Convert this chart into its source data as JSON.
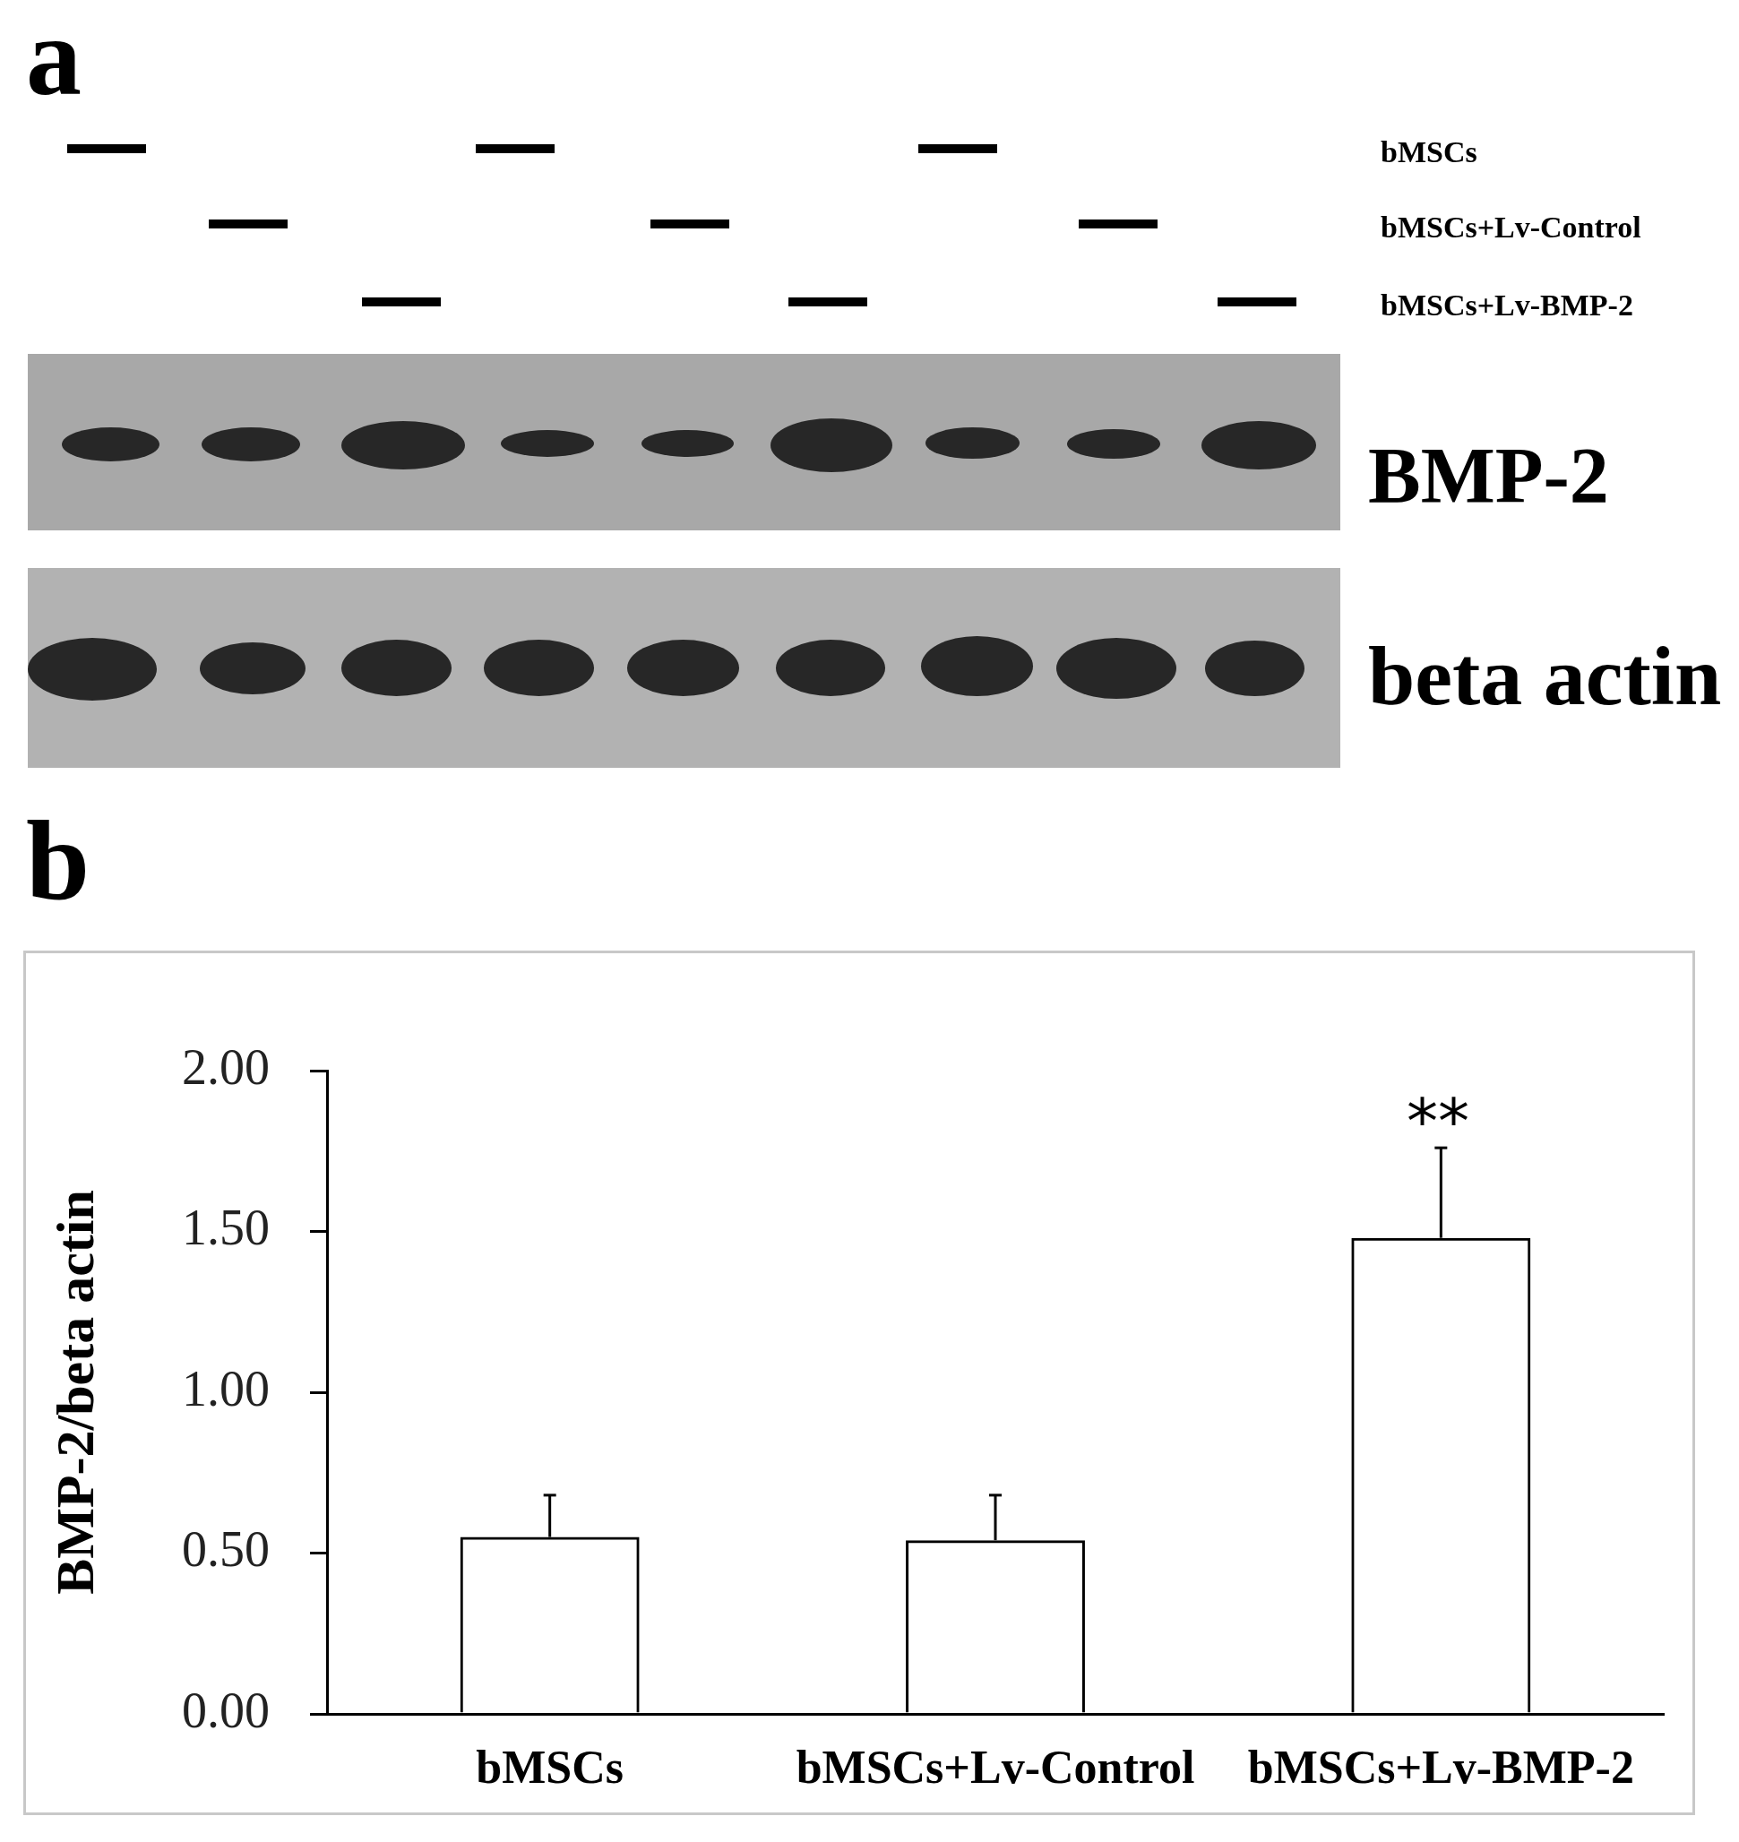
{
  "chart_data": {
    "type": "bar",
    "annotations": [
      "a",
      "bMSCs",
      "bMSCs+Lv-Control",
      "bMSCs+Lv-BMP-2",
      "BMP-2",
      "beta actin",
      "b",
      "**"
    ],
    "ylabel": "BMP-2/beta actin",
    "categories": [
      "bMSCs",
      "bMSCs+Lv-Control",
      "bMSCs+Lv-BMP-2"
    ],
    "values": [
      0.55,
      0.54,
      1.48
    ],
    "color": "#000000",
    "errors": [
      [
        0.55,
        0.68
      ],
      [
        0.54,
        0.68
      ],
      [
        1.48,
        1.76
      ]
    ],
    "ylim": [
      0,
      2
    ],
    "yticks": [
      {
        "value": 0,
        "label": "0.00"
      },
      {
        "value": 0.5,
        "label": "0.50"
      },
      {
        "value": 1,
        "label": "1.00"
      },
      {
        "value": 1.5,
        "label": "1.50"
      },
      {
        "value": 2,
        "label": "2.00"
      }
    ],
    "grid": false
  }
}
